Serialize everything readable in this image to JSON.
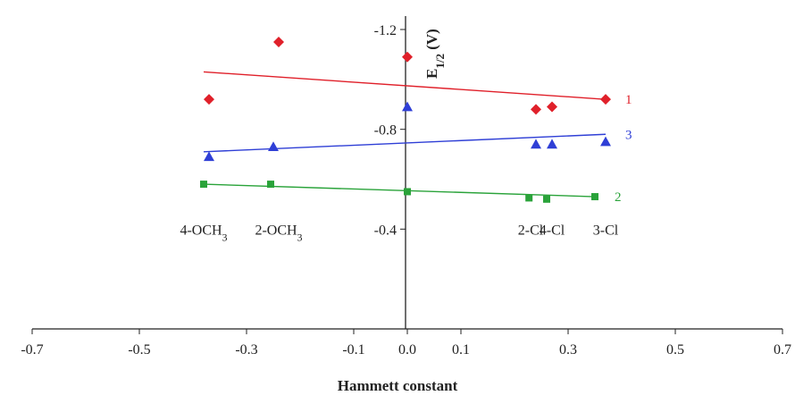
{
  "chart_data": {
    "type": "scatter",
    "title": "",
    "xlabel": "Hammett constant",
    "ylabel": "E1/2 (V)",
    "ylabel_main": "E",
    "ylabel_sub": "1/2",
    "ylabel_unit": "(V)",
    "xlim": [
      -0.7,
      0.7
    ],
    "ylim": [
      0.0,
      -1.2
    ],
    "x_ticks": [
      "-0.7",
      "-0.5",
      "-0.3",
      "-0.1",
      "0.0",
      "0.1",
      "0.3",
      "0.5",
      "0.7"
    ],
    "x_tick_values": [
      -0.7,
      -0.5,
      -0.3,
      -0.1,
      0.0,
      0.1,
      0.3,
      0.5,
      0.7
    ],
    "y_ticks": [
      "-1.2",
      "-0.8",
      "-0.4"
    ],
    "y_tick_values": [
      -1.2,
      -0.8,
      -0.4
    ],
    "grid": false,
    "series": [
      {
        "name": "1",
        "color": "#e0202a",
        "marker": "diamond",
        "points": [
          {
            "x": -0.37,
            "y": -0.92
          },
          {
            "x": -0.24,
            "y": -1.15
          },
          {
            "x": 0.0,
            "y": -1.09
          },
          {
            "x": 0.24,
            "y": -0.88
          },
          {
            "x": 0.27,
            "y": -0.89
          },
          {
            "x": 0.37,
            "y": -0.92
          }
        ],
        "fit": {
          "x": [
            -0.38,
            0.37
          ],
          "y": [
            -1.03,
            -0.92
          ]
        }
      },
      {
        "name": "2",
        "color": "#2aa33a",
        "marker": "square",
        "points": [
          {
            "x": -0.38,
            "y": -0.58
          },
          {
            "x": -0.255,
            "y": -0.58
          },
          {
            "x": 0.0,
            "y": -0.55
          },
          {
            "x": 0.227,
            "y": -0.525
          },
          {
            "x": 0.26,
            "y": -0.52
          },
          {
            "x": 0.35,
            "y": -0.53
          }
        ],
        "fit": {
          "x": [
            -0.38,
            0.35
          ],
          "y": [
            -0.58,
            -0.53
          ]
        }
      },
      {
        "name": "3",
        "color": "#2f3fd6",
        "marker": "triangle",
        "points": [
          {
            "x": -0.37,
            "y": -0.69
          },
          {
            "x": -0.25,
            "y": -0.73
          },
          {
            "x": 0.0,
            "y": -0.89
          },
          {
            "x": 0.24,
            "y": -0.74
          },
          {
            "x": 0.27,
            "y": -0.74
          },
          {
            "x": 0.37,
            "y": -0.75
          }
        ],
        "fit": {
          "x": [
            -0.38,
            0.37
          ],
          "y": [
            -0.71,
            -0.78
          ]
        }
      }
    ],
    "substituent_labels": [
      {
        "x": -0.38,
        "main": "4-OCH",
        "sub": "3"
      },
      {
        "x": -0.24,
        "main": "2-OCH",
        "sub": "3"
      },
      {
        "x": 0.23,
        "main": "2-Cl",
        "sub": ""
      },
      {
        "x": 0.27,
        "main": "4-Cl",
        "sub": ""
      },
      {
        "x": 0.37,
        "main": "3-Cl",
        "sub": ""
      }
    ],
    "substituent_label_y": -0.4
  }
}
